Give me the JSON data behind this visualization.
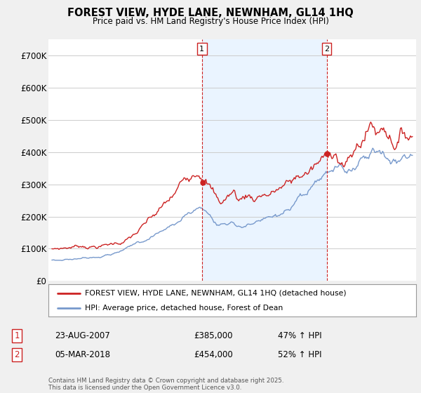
{
  "title": "FOREST VIEW, HYDE LANE, NEWNHAM, GL14 1HQ",
  "subtitle": "Price paid vs. HM Land Registry's House Price Index (HPI)",
  "ylim": [
    0,
    750000
  ],
  "yticks": [
    0,
    100000,
    200000,
    300000,
    400000,
    500000,
    600000,
    700000
  ],
  "ytick_labels": [
    "£0",
    "£100K",
    "£200K",
    "£300K",
    "£400K",
    "£500K",
    "£600K",
    "£700K"
  ],
  "line1_color": "#cc2222",
  "line2_color": "#7799cc",
  "shade_color": "#ddeeff",
  "marker1_date": 2007.65,
  "marker2_date": 2018.17,
  "marker1_label": "1",
  "marker2_label": "2",
  "legend_line1": "FOREST VIEW, HYDE LANE, NEWNHAM, GL14 1HQ (detached house)",
  "legend_line2": "HPI: Average price, detached house, Forest of Dean",
  "note1_label": "1",
  "note1_date": "23-AUG-2007",
  "note1_price": "£385,000",
  "note1_hpi": "47% ↑ HPI",
  "note2_label": "2",
  "note2_date": "05-MAR-2018",
  "note2_price": "£454,000",
  "note2_hpi": "52% ↑ HPI",
  "footer": "Contains HM Land Registry data © Crown copyright and database right 2025.\nThis data is licensed under the Open Government Licence v3.0.",
  "background_color": "#f0f0f0",
  "plot_bg_color": "#ffffff",
  "grid_color": "#cccccc",
  "xmin": 1994.7,
  "xmax": 2025.7
}
